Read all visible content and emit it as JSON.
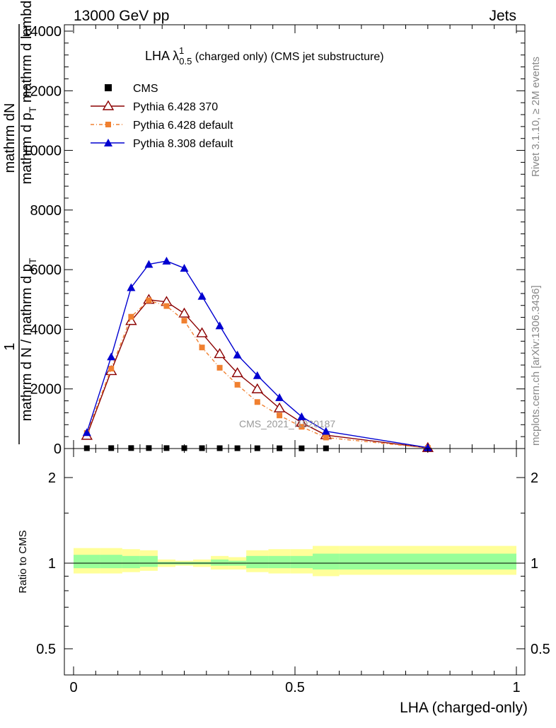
{
  "header": {
    "left": "13000 GeV pp",
    "right": "Jets"
  },
  "side": {
    "rivet": "Rivet 3.1.10, ≥ 2M events",
    "mcplots": "mcplots.cern.ch [arXiv:1306.3436]"
  },
  "watermark": "CMS_2021_I1920187",
  "chart_data": [
    {
      "type": "line",
      "title_main": "LHA λ",
      "title_sup": "1",
      "title_sub": "0.5",
      "title_rest": " (charged only) (CMS jet substructure)",
      "ylabel_1": "1",
      "ylabel_2": "mathrm dN",
      "ylabel_3": "mathrm d p",
      "ylabel_3_sub": "T",
      "ylabel_4": " mathrm d lambda",
      "ylabel_5": "mathrm d N / mathrm d p",
      "ylabel_5_sub": "T",
      "ylim": [
        0,
        14000
      ],
      "xlim": [
        0,
        1
      ],
      "yticks": [
        0,
        2000,
        4000,
        6000,
        8000,
        10000,
        12000,
        14000
      ],
      "ytick_labels": [
        "0",
        "2000",
        "4000",
        "6000",
        "8000",
        "10000",
        "12000",
        "14000"
      ],
      "x": [
        0.03,
        0.085,
        0.13,
        0.17,
        0.21,
        0.25,
        0.29,
        0.33,
        0.37,
        0.415,
        0.465,
        0.515,
        0.57,
        0.8
      ],
      "series": [
        {
          "name": "CMS",
          "color": "#000000",
          "marker": "square",
          "values": [
            12,
            14,
            16,
            16,
            15,
            14,
            13,
            12,
            11,
            10,
            9,
            8,
            8,
            null
          ]
        },
        {
          "name": "Pythia 6.428 370",
          "color": "#8b0000",
          "marker": "open-triangle",
          "dash": "",
          "values": [
            430,
            2600,
            4280,
            4990,
            4920,
            4530,
            3870,
            3170,
            2530,
            1990,
            1350,
            870,
            450,
            20
          ]
        },
        {
          "name": "Pythia 6.428 default",
          "color": "#f08030",
          "marker": "small-square",
          "dash": "5,3,1,3",
          "values": [
            520,
            2680,
            4420,
            4970,
            4780,
            4290,
            3390,
            2710,
            2140,
            1560,
            1110,
            730,
            370,
            20
          ]
        },
        {
          "name": "Pythia 8.308 default",
          "color": "#0000d0",
          "marker": "triangle",
          "dash": "",
          "values": [
            540,
            3080,
            5400,
            6180,
            6290,
            6050,
            5110,
            4120,
            3140,
            2450,
            1710,
            1070,
            580,
            30
          ]
        }
      ]
    },
    {
      "type": "area",
      "ylabel": "Ratio to CMS",
      "xlabel": "LHA (charged-only)",
      "xlim": [
        0,
        1
      ],
      "xticks": [
        0,
        0.5,
        1
      ],
      "xtick_labels": [
        "0",
        "0.5",
        "1"
      ],
      "yscale": "log",
      "ylim": [
        0.4,
        2.4
      ],
      "yticks": [
        0.5,
        1,
        2
      ],
      "ytick_labels": [
        "0.5",
        "1",
        "2"
      ],
      "bin_edges": [
        0,
        0.06,
        0.11,
        0.15,
        0.19,
        0.23,
        0.27,
        0.31,
        0.35,
        0.39,
        0.44,
        0.49,
        0.54,
        0.6,
        1.0
      ],
      "band_total": [
        [
          0.92,
          1.13
        ],
        [
          0.92,
          1.13
        ],
        [
          0.93,
          1.12
        ],
        [
          0.94,
          1.11
        ],
        [
          0.97,
          1.03
        ],
        [
          0.98,
          1.02
        ],
        [
          0.97,
          1.03
        ],
        [
          0.95,
          1.06
        ],
        [
          0.95,
          1.05
        ],
        [
          0.93,
          1.11
        ],
        [
          0.92,
          1.12
        ],
        [
          0.92,
          1.12
        ],
        [
          0.9,
          1.15
        ],
        [
          0.91,
          1.15
        ]
      ],
      "band_stat": [
        [
          0.96,
          1.07
        ],
        [
          0.96,
          1.07
        ],
        [
          0.96,
          1.06
        ],
        [
          0.97,
          1.06
        ],
        [
          0.99,
          1.01
        ],
        [
          0.99,
          1.01
        ],
        [
          0.99,
          1.01
        ],
        [
          0.98,
          1.03
        ],
        [
          0.98,
          1.02
        ],
        [
          0.96,
          1.06
        ],
        [
          0.96,
          1.06
        ],
        [
          0.96,
          1.06
        ],
        [
          0.95,
          1.08
        ],
        [
          0.95,
          1.08
        ]
      ],
      "band_total_color": "#ffff99",
      "band_stat_color": "#99ff99"
    }
  ]
}
